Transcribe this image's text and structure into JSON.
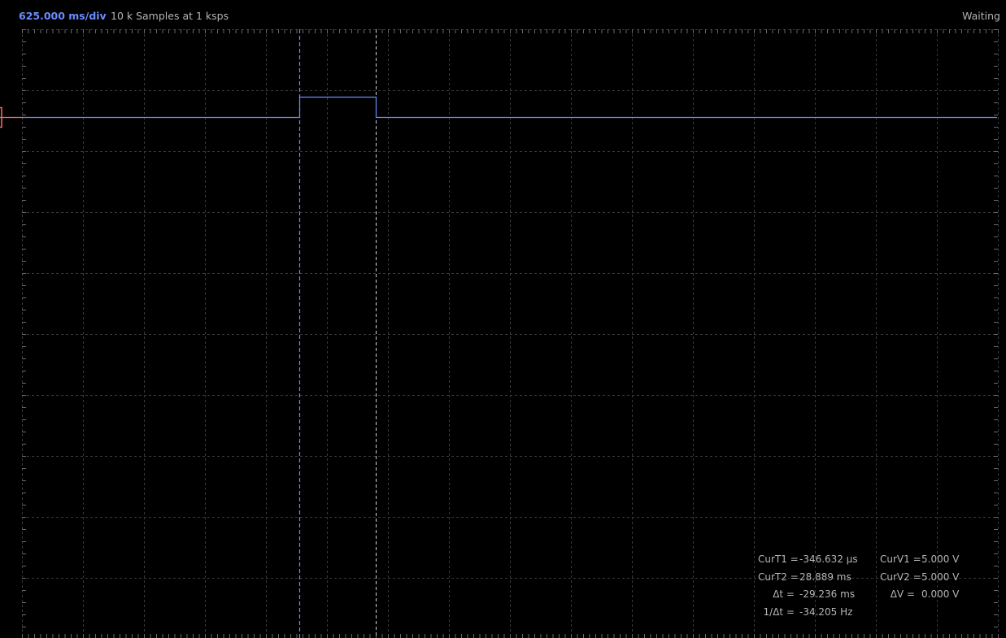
{
  "header": {
    "timebase": "625.000 ms/div",
    "acquisition": "10 k Samples at 1 ksps",
    "status": "Waiting"
  },
  "channel": {
    "trace_color": "#6b8cff",
    "marker_color": "#ff6b6b"
  },
  "cursor_readouts": {
    "curT1_label": "CurT1 =",
    "curT1_value": "-346.632 µs",
    "curT2_label": "CurT2 =",
    "curT2_value": "28.889 ms",
    "dt_label": "Δt =",
    "dt_value": "-29.236 ms",
    "inv_dt_label": "1/Δt =",
    "inv_dt_value": "-34.205 Hz",
    "curV1_label": "CurV1 =",
    "curV1_value": "5.000 V",
    "curV2_label": "CurV2 =",
    "curV2_value": "5.000 V",
    "dV_label": "ΔV =",
    "dV_value": "0.000 V"
  },
  "colors": {
    "background": "#000000",
    "grid": "#3a3a3a",
    "text": "#b5b5b5",
    "accent": "#6b8cff"
  }
}
